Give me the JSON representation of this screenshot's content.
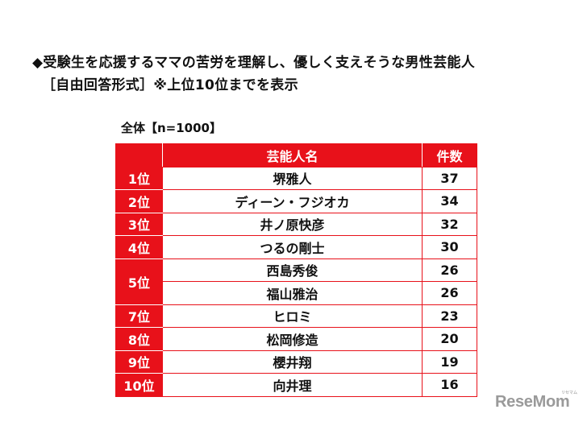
{
  "heading": {
    "line1": "◆受験生を応援するママの苦労を理解し、優しく支えそうな男性芸能人",
    "line2": "［自由回答形式］※上位10位までを表示"
  },
  "caption": "全体【n=1000】",
  "table": {
    "header": {
      "rank": "",
      "name": "芸能人名",
      "count": "件数"
    },
    "rows": [
      {
        "rank": "1位",
        "name": "堺雅人",
        "count": "37"
      },
      {
        "rank": "2位",
        "name": "ディーン・フジオカ",
        "count": "34"
      },
      {
        "rank": "3位",
        "name": "井ノ原快彦",
        "count": "32"
      },
      {
        "rank": "4位",
        "name": "つるの剛士",
        "count": "30"
      },
      {
        "rank": "5位",
        "name": "西島秀俊",
        "count": "26"
      },
      {
        "rank": "",
        "name": "福山雅治",
        "count": "26"
      },
      {
        "rank": "7位",
        "name": "ヒロミ",
        "count": "23"
      },
      {
        "rank": "8位",
        "name": "松岡修造",
        "count": "20"
      },
      {
        "rank": "9位",
        "name": "櫻井翔",
        "count": "19"
      },
      {
        "rank": "10位",
        "name": "向井理",
        "count": "16"
      }
    ]
  },
  "watermark": {
    "text": "ReseMom",
    "small": "リセマム"
  },
  "colors": {
    "accent": "#e8111a",
    "watermark": "#9a9a9a"
  }
}
